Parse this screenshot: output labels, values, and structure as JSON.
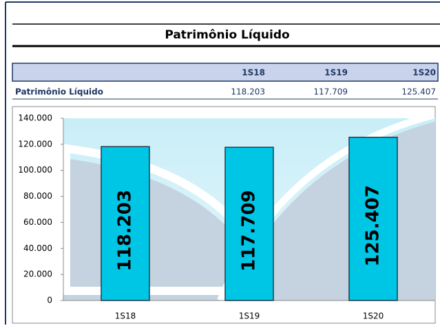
{
  "title": "Patrimônio Líquido",
  "table": {
    "header": [
      "1S18",
      "1S19",
      "1S20"
    ],
    "rows": [
      [
        "Patrimônio Líquido",
        "118.203",
        "117.709",
        "125.407"
      ]
    ]
  },
  "chart_data": {
    "type": "bar",
    "categories": [
      "1S18",
      "1S19",
      "1S20"
    ],
    "values": [
      118203,
      117709,
      125407
    ],
    "value_labels": [
      "118.203",
      "117.709",
      "125.407"
    ],
    "color": "#00c6e6",
    "ylim": [
      0,
      140000
    ],
    "yticks": [
      0,
      {
        "value": 20000,
        "label": "20.000"
      },
      {
        "value": 40000,
        "label": "40.000"
      },
      {
        "value": 60000,
        "label": "60.000"
      },
      {
        "value": 80000,
        "label": "80.000"
      },
      {
        "value": 100000,
        "label": "100.000"
      },
      {
        "value": 120000,
        "label": "120.000"
      },
      {
        "value": 140000,
        "label": "140.000"
      }
    ]
  }
}
